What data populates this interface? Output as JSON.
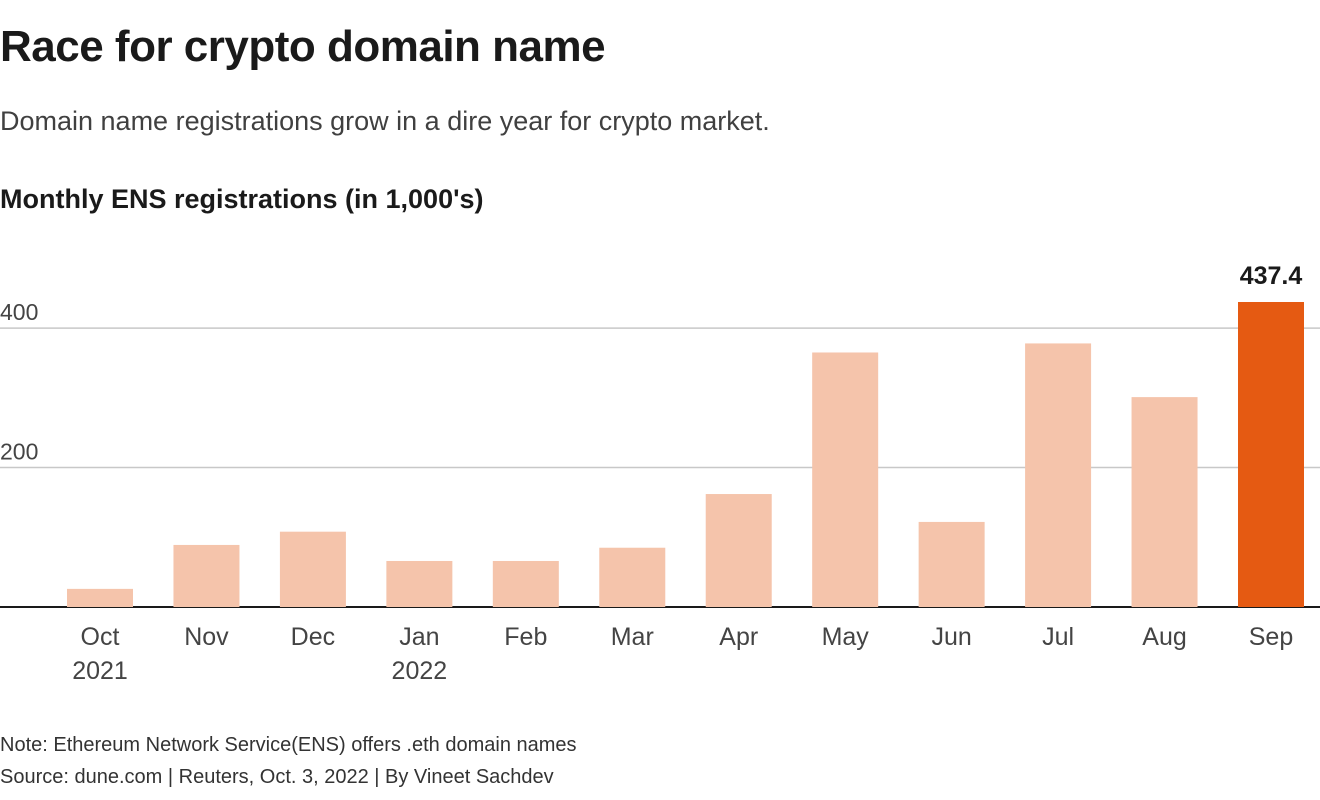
{
  "header": {
    "title": "Race for crypto domain name",
    "subtitle": "Domain name registrations grow in a dire year for crypto market."
  },
  "chart_data": {
    "type": "bar",
    "title": "Monthly ENS registrations (in 1,000's)",
    "categories": [
      "Oct",
      "Nov",
      "Dec",
      "Jan",
      "Feb",
      "Mar",
      "Apr",
      "May",
      "Jun",
      "Jul",
      "Aug",
      "Sep"
    ],
    "category_sublabels": [
      "2021",
      "",
      "",
      "2022",
      "",
      "",
      "",
      "",
      "",
      "",
      "",
      ""
    ],
    "values": [
      26,
      89,
      108,
      66,
      66,
      85,
      162,
      365,
      122,
      378,
      301,
      437.4
    ],
    "highlight_index": 11,
    "highlight_label": "437.4",
    "y_ticks": [
      200,
      400
    ],
    "ylim": [
      0,
      437.4
    ],
    "grid": true,
    "colors": {
      "bar": "#f5c4ab",
      "highlight": "#e55a12",
      "grid": "#c8c8c8",
      "axis": "#1a1a1a",
      "tick_text": "#444444"
    }
  },
  "footer": {
    "note": "Note: Ethereum Network Service(ENS) offers .eth domain names",
    "source": "Source: dune.com | Reuters, Oct. 3, 2022 | By Vineet Sachdev"
  }
}
